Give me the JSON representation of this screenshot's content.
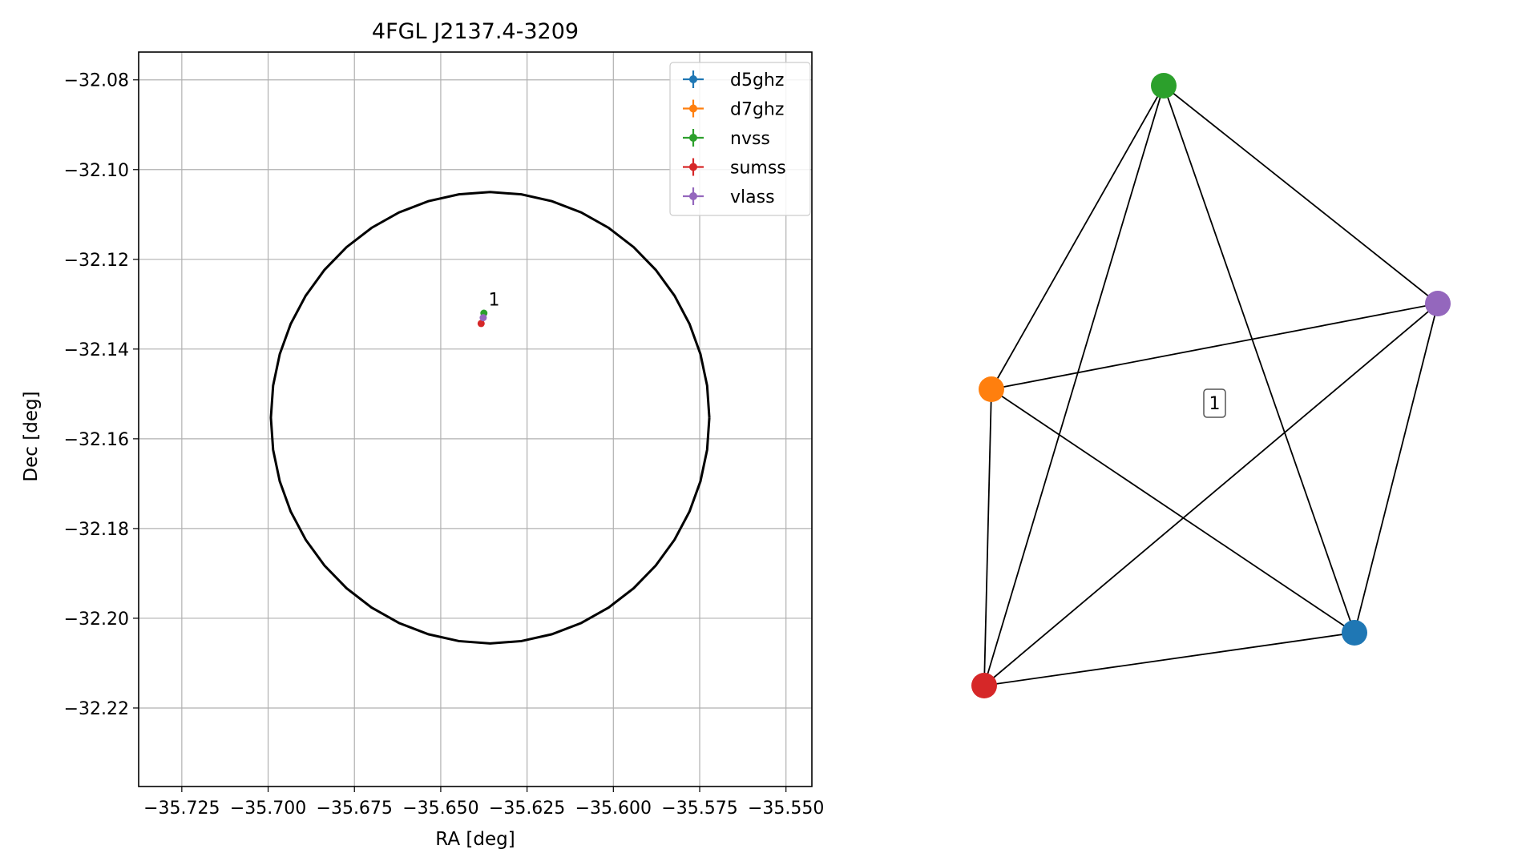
{
  "chart_data": [
    {
      "type": "scatter",
      "title": "4FGL J2137.4-3209",
      "xlabel": "RA [deg]",
      "ylabel": "Dec [deg]",
      "xlim": [
        -35.7375,
        -35.5425
      ],
      "ylim": [
        -32.2375,
        -32.0738
      ],
      "xticks": [
        -35.725,
        -35.7,
        -35.675,
        -35.65,
        -35.625,
        -35.6,
        -35.575,
        -35.55
      ],
      "xtick_labels": [
        "−35.725",
        "−35.700",
        "−35.675",
        "−35.650",
        "−35.625",
        "−35.600",
        "−35.575",
        "−35.550"
      ],
      "yticks": [
        -32.08,
        -32.1,
        -32.12,
        -32.14,
        -32.16,
        -32.18,
        -32.2,
        -32.22
      ],
      "ytick_labels": [
        "−32.08",
        "−32.10",
        "−32.12",
        "−32.14",
        "−32.16",
        "−32.18",
        "−32.20",
        "−32.22"
      ],
      "grid": true,
      "legend_position": "top-right",
      "ellipse": {
        "center": [
          -35.6357,
          -32.1553
        ],
        "ra_radius": 0.0635,
        "dec_radius": 0.0503,
        "color": "#000000"
      },
      "series": [
        {
          "name": "d5ghz",
          "color": "#1f77b4",
          "points": []
        },
        {
          "name": "d7ghz",
          "color": "#ff7f0e",
          "points": []
        },
        {
          "name": "nvss",
          "color": "#2ca02c",
          "points": [
            [
              -35.6375,
              -32.132
            ]
          ]
        },
        {
          "name": "sumss",
          "color": "#d62728",
          "points": [
            [
              -35.6383,
              -32.1343
            ]
          ]
        },
        {
          "name": "vlass",
          "color": "#9467bd",
          "points": [
            [
              -35.6377,
              -32.133
            ]
          ]
        }
      ],
      "annotations": [
        {
          "text": "1",
          "x": -35.6364,
          "y": -32.131
        }
      ]
    },
    {
      "type": "network",
      "nodes": [
        {
          "name": "nvss",
          "color": "#2ca02c"
        },
        {
          "name": "vlass",
          "color": "#9467bd"
        },
        {
          "name": "d7ghz",
          "color": "#ff7f0e"
        },
        {
          "name": "d5ghz",
          "color": "#1f77b4"
        },
        {
          "name": "sumss",
          "color": "#d62728"
        }
      ],
      "edges": [
        [
          "nvss",
          "vlass"
        ],
        [
          "nvss",
          "d7ghz"
        ],
        [
          "nvss",
          "sumss"
        ],
        [
          "nvss",
          "d5ghz"
        ],
        [
          "vlass",
          "d7ghz"
        ],
        [
          "vlass",
          "sumss"
        ],
        [
          "vlass",
          "d5ghz"
        ],
        [
          "d7ghz",
          "sumss"
        ],
        [
          "d7ghz",
          "d5ghz"
        ],
        [
          "sumss",
          "d5ghz"
        ]
      ],
      "cluster_label": "1"
    }
  ]
}
